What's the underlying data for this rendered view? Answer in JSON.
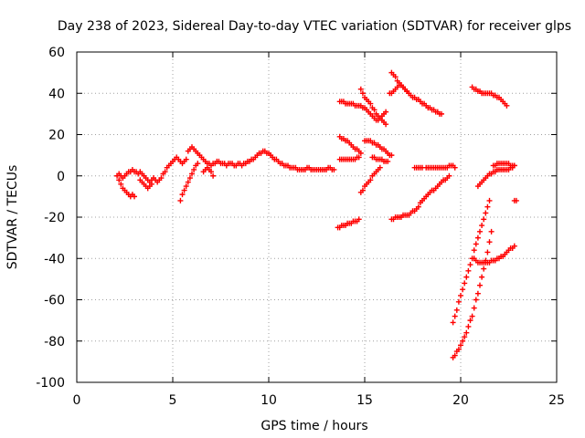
{
  "chart_data": {
    "type": "scatter",
    "title": "Day 238 of 2023, Sidereal Day-to-day VTEC variation (SDTVAR) for receiver glps",
    "xlabel": "GPS time / hours",
    "ylabel": "SDTVAR / TECUs",
    "xlim": [
      0,
      25
    ],
    "ylim": [
      -100,
      60
    ],
    "x_ticks": [
      "0",
      "5",
      "10",
      "15",
      "20",
      "25"
    ],
    "y_ticks": [
      "60",
      "40",
      "20",
      "0",
      "-20",
      "-40",
      "-60",
      "-80",
      "-100"
    ],
    "grid": true,
    "marker": "plus",
    "color": "#ff0000",
    "series": [
      {
        "x": [
          2.1,
          2.2,
          2.3,
          2.4,
          2.5,
          2.6,
          2.7,
          2.8,
          2.9,
          3.0,
          3.1,
          3.2,
          3.3,
          3.4,
          3.5,
          3.6,
          3.7,
          3.8,
          3.9,
          4.0,
          4.1,
          4.2,
          4.3,
          4.4,
          4.5,
          4.6,
          4.7,
          4.8,
          4.9,
          5.0,
          5.1,
          5.2,
          5.3,
          5.4,
          5.5,
          5.6,
          5.7,
          5.8,
          5.9,
          6.0,
          6.1,
          6.2,
          6.3,
          6.4,
          6.5,
          6.6,
          6.7,
          6.8,
          6.9,
          7.0,
          7.1,
          7.2,
          7.3,
          7.4,
          7.5,
          7.6,
          7.7,
          7.8,
          7.9,
          8.0,
          8.1,
          8.2,
          8.3,
          8.4,
          8.5,
          8.6,
          8.7,
          8.8,
          8.9,
          9.0,
          9.1,
          9.2,
          9.3,
          9.4,
          9.5,
          9.6,
          9.7,
          9.8,
          9.9,
          10.0,
          10.1,
          10.2,
          10.3,
          10.4,
          10.5,
          10.6,
          10.7,
          10.8,
          10.9,
          11.0,
          11.1,
          11.2,
          11.3,
          11.4,
          11.5,
          11.6,
          11.7,
          11.8,
          11.9,
          12.0,
          12.1,
          12.2,
          12.3,
          12.4,
          12.5,
          12.6,
          12.7,
          12.8,
          12.9,
          13.0,
          13.1,
          13.2,
          13.3,
          13.4
        ],
        "y": [
          0,
          1,
          0,
          -1,
          0,
          1,
          2,
          2,
          3,
          2,
          2,
          1,
          2,
          1,
          0,
          -1,
          -2,
          -3,
          -2,
          -1,
          -2,
          -3,
          -2,
          -1,
          1,
          2,
          4,
          5,
          6,
          7,
          8,
          9,
          8,
          7,
          6,
          7,
          8,
          12,
          13,
          14,
          13,
          12,
          11,
          10,
          9,
          8,
          7,
          6,
          6,
          5,
          6,
          6,
          7,
          7,
          6,
          6,
          6,
          5,
          6,
          6,
          6,
          5,
          5,
          6,
          6,
          5,
          6,
          6,
          7,
          7,
          8,
          8,
          9,
          10,
          11,
          11,
          12,
          12,
          11,
          11,
          10,
          9,
          8,
          8,
          7,
          6,
          6,
          5,
          5,
          5,
          4,
          4,
          4,
          4,
          3,
          3,
          3,
          3,
          3,
          4,
          4,
          3,
          3,
          3,
          3,
          3,
          3,
          3,
          3,
          3,
          4,
          4,
          3,
          3
        ]
      },
      {
        "x": [
          2.2,
          2.3,
          2.4,
          2.5,
          2.6,
          2.7,
          2.8,
          2.9,
          3.0
        ],
        "y": [
          -2,
          -4,
          -6,
          -7,
          -8,
          -9,
          -10,
          -9,
          -10
        ]
      },
      {
        "x": [
          3.3,
          3.4,
          3.5,
          3.6,
          3.7,
          3.8,
          3.9
        ],
        "y": [
          -2,
          -3,
          -4,
          -5,
          -6,
          -5,
          -4
        ]
      },
      {
        "x": [
          5.4,
          5.5,
          5.6,
          5.7,
          5.8,
          5.9,
          6.0,
          6.1,
          6.2,
          6.3
        ],
        "y": [
          -12,
          -9,
          -7,
          -5,
          -3,
          -1,
          1,
          3,
          5,
          6
        ]
      },
      {
        "x": [
          6.6,
          6.7,
          6.8,
          6.9,
          7.0,
          7.1
        ],
        "y": [
          2,
          3,
          4,
          3,
          2,
          0
        ]
      },
      {
        "x": [
          13.7,
          13.8,
          13.9,
          14.0,
          14.1,
          14.2,
          14.3,
          14.4,
          14.5,
          14.6,
          14.7,
          14.8,
          14.9,
          15.0,
          15.1,
          15.2,
          15.3,
          15.4,
          15.5,
          15.6,
          15.7,
          15.8,
          15.9,
          16.0,
          16.1
        ],
        "y": [
          36,
          36,
          36,
          35,
          35,
          35,
          35,
          35,
          34,
          34,
          34,
          34,
          33,
          33,
          32,
          31,
          30,
          29,
          28,
          27,
          27,
          28,
          29,
          30,
          31
        ]
      },
      {
        "x": [
          14.8,
          14.9,
          15.0,
          15.1,
          15.2,
          15.3,
          15.4,
          15.5,
          15.6,
          15.7,
          15.8,
          15.9,
          16.0,
          16.1
        ],
        "y": [
          42,
          40,
          38,
          37,
          36,
          35,
          33,
          32,
          30,
          29,
          28,
          27,
          26,
          25
        ]
      },
      {
        "x": [
          13.7,
          13.8,
          13.9,
          14.0,
          14.1,
          14.2,
          14.3,
          14.4,
          14.5,
          14.6,
          14.7,
          14.8
        ],
        "y": [
          19,
          18,
          18,
          17,
          17,
          16,
          15,
          14,
          13,
          13,
          12,
          11
        ]
      },
      {
        "x": [
          15.0,
          15.1,
          15.2,
          15.3,
          15.4,
          15.5,
          15.6,
          15.7,
          15.8,
          15.9,
          16.0,
          16.1,
          16.2,
          16.3,
          16.4
        ],
        "y": [
          17,
          17,
          17,
          17,
          16,
          16,
          15,
          15,
          14,
          13,
          13,
          12,
          11,
          10,
          10
        ]
      },
      {
        "x": [
          13.7,
          13.8,
          13.9,
          14.0,
          14.1,
          14.2,
          14.3,
          14.4,
          14.5,
          14.6,
          14.7
        ],
        "y": [
          8,
          8,
          8,
          8,
          8,
          8,
          8,
          8,
          8,
          9,
          9
        ]
      },
      {
        "x": [
          15.4,
          15.5,
          15.6,
          15.7,
          15.8,
          15.9,
          16.0,
          16.1,
          16.2
        ],
        "y": [
          9,
          9,
          8,
          8,
          8,
          8,
          7,
          7,
          7
        ]
      },
      {
        "x": [
          13.6,
          13.7,
          13.8,
          13.9,
          14.0,
          14.1,
          14.2,
          14.3,
          14.4,
          14.5,
          14.6,
          14.7
        ],
        "y": [
          -25,
          -25,
          -24,
          -24,
          -24,
          -23,
          -23,
          -23,
          -22,
          -22,
          -22,
          -21
        ]
      },
      {
        "x": [
          14.8,
          14.9,
          15.0,
          15.1,
          15.2,
          15.3,
          15.4,
          15.5,
          15.6,
          15.7,
          15.8
        ],
        "y": [
          -8,
          -7,
          -5,
          -4,
          -3,
          -2,
          0,
          1,
          2,
          3,
          4
        ]
      },
      {
        "x": [
          16.3,
          16.4,
          16.5,
          16.6,
          16.7,
          16.8,
          16.9,
          17.0,
          17.1,
          17.2,
          17.3,
          17.4,
          17.5,
          17.6,
          17.7,
          17.8,
          17.9,
          18.0,
          18.1,
          18.2,
          18.3,
          18.4,
          18.5,
          18.6,
          18.7,
          18.8,
          18.9,
          19.0
        ],
        "y": [
          40,
          40,
          41,
          42,
          43,
          44,
          44,
          43,
          42,
          41,
          40,
          39,
          38,
          38,
          37,
          37,
          36,
          35,
          35,
          34,
          33,
          33,
          32,
          32,
          31,
          31,
          30,
          30
        ]
      },
      {
        "x": [
          16.4,
          16.5,
          16.6,
          16.7,
          16.8,
          16.9,
          17.0,
          17.1,
          17.2,
          17.3
        ],
        "y": [
          50,
          49,
          48,
          46,
          45,
          44,
          43,
          42,
          41,
          40
        ]
      },
      {
        "x": [
          16.4,
          16.5,
          16.6,
          16.7,
          16.8,
          16.9,
          17.0,
          17.1,
          17.2,
          17.3,
          17.4,
          17.5,
          17.6,
          17.7,
          17.8,
          17.9,
          18.0,
          18.1,
          18.2,
          18.3,
          18.4,
          18.5,
          18.6,
          18.7,
          18.8,
          18.9,
          19.0,
          19.1,
          19.2,
          19.3,
          19.4
        ],
        "y": [
          -21,
          -21,
          -20,
          -20,
          -20,
          -20,
          -19,
          -19,
          -19,
          -19,
          -18,
          -17,
          -17,
          -16,
          -15,
          -13,
          -12,
          -11,
          -10,
          -9,
          -8,
          -7,
          -7,
          -6,
          -5,
          -4,
          -3,
          -2,
          -2,
          -1,
          0
        ]
      },
      {
        "x": [
          18.2,
          18.3,
          18.4,
          18.5,
          18.6,
          18.7,
          18.8,
          18.9,
          19.0,
          19.1,
          19.2,
          19.3,
          19.4,
          19.5,
          19.6,
          19.7
        ],
        "y": [
          4,
          4,
          4,
          4,
          4,
          4,
          4,
          4,
          4,
          4,
          4,
          4,
          5,
          5,
          5,
          4
        ]
      },
      {
        "x": [
          17.6,
          17.7,
          17.8,
          17.9,
          18.0
        ],
        "y": [
          4,
          4,
          4,
          4,
          4
        ]
      },
      {
        "x": [
          20.6,
          20.7,
          20.8,
          20.9,
          21.0,
          21.1,
          21.2,
          21.3,
          21.4,
          21.5,
          21.6,
          21.7,
          21.8,
          21.9,
          22.0,
          22.1,
          22.2,
          22.3,
          22.4
        ],
        "y": [
          43,
          42,
          42,
          41,
          41,
          40,
          40,
          40,
          40,
          40,
          40,
          39,
          39,
          38,
          38,
          37,
          36,
          35,
          34
        ]
      },
      {
        "x": [
          20.9,
          21.0,
          21.1,
          21.2,
          21.3,
          21.4,
          21.5,
          21.6,
          21.7,
          21.8,
          21.9,
          22.0,
          22.1,
          22.2,
          22.3,
          22.4,
          22.5,
          22.6,
          22.7,
          22.8
        ],
        "y": [
          -5,
          -4,
          -3,
          -2,
          -1,
          0,
          1,
          1,
          2,
          2,
          3,
          3,
          3,
          3,
          3,
          3,
          3,
          4,
          4,
          5
        ]
      },
      {
        "x": [
          21.7,
          21.8,
          21.9,
          22.0,
          22.1,
          22.2,
          22.3,
          22.4,
          22.5,
          22.6,
          22.7,
          22.8
        ],
        "y": [
          5,
          5,
          6,
          6,
          6,
          6,
          6,
          6,
          6,
          5,
          5,
          5
        ]
      },
      {
        "x": [
          22.8,
          22.9
        ],
        "y": [
          -12,
          -12
        ]
      },
      {
        "x": [
          19.6,
          19.7,
          19.8,
          19.9,
          20.0,
          20.1,
          20.2,
          20.3,
          20.4,
          20.5,
          20.6,
          20.7,
          20.8,
          20.9,
          21.0,
          21.1,
          21.2,
          21.3,
          21.4,
          21.5
        ],
        "y": [
          -71,
          -68,
          -65,
          -61,
          -58,
          -55,
          -52,
          -49,
          -46,
          -43,
          -40,
          -36,
          -33,
          -30,
          -27,
          -24,
          -21,
          -18,
          -15,
          -12
        ]
      },
      {
        "x": [
          19.6,
          19.7,
          19.8,
          19.9,
          20.0,
          20.1,
          20.2,
          20.3,
          20.4,
          20.5,
          20.6,
          20.7,
          20.8,
          20.9,
          21.0,
          21.1,
          21.2,
          21.3,
          21.4,
          21.5,
          21.6
        ],
        "y": [
          -88,
          -87,
          -85,
          -84,
          -82,
          -80,
          -78,
          -76,
          -73,
          -70,
          -68,
          -64,
          -60,
          -57,
          -53,
          -49,
          -45,
          -41,
          -37,
          -32,
          -27
        ]
      },
      {
        "x": [
          20.7,
          20.8,
          20.9,
          21.0,
          21.1,
          21.2,
          21.3,
          21.4,
          21.5,
          21.6,
          21.7,
          21.8,
          21.9,
          22.0,
          22.1,
          22.2,
          22.3,
          22.4,
          22.5,
          22.6,
          22.7,
          22.8
        ],
        "y": [
          -40,
          -41,
          -42,
          -42,
          -42,
          -42,
          -42,
          -42,
          -42,
          -41,
          -41,
          -41,
          -40,
          -40,
          -39,
          -39,
          -38,
          -37,
          -36,
          -35,
          -35,
          -34
        ]
      }
    ]
  }
}
